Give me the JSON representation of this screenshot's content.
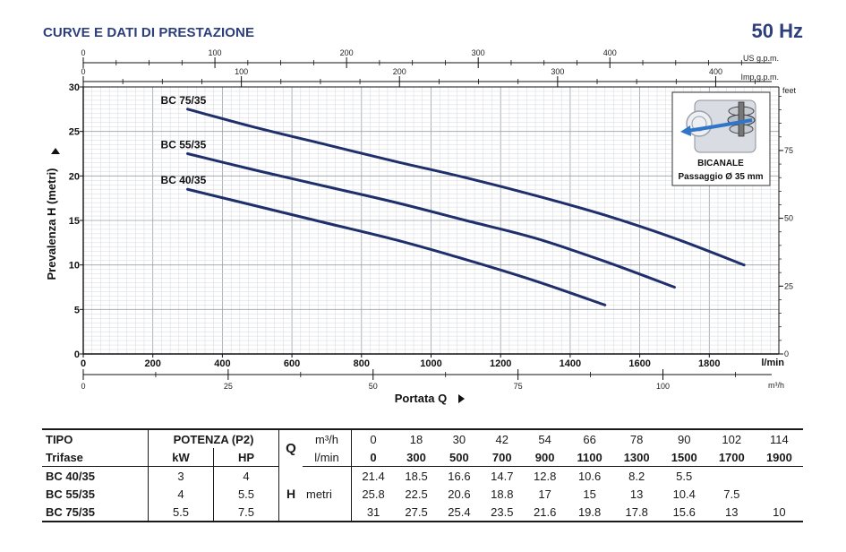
{
  "header": {
    "title": "CURVE E DATI DI PRESTAZIONE",
    "frequency": "50 Hz"
  },
  "chart_data": {
    "type": "line",
    "ylabel": "Prevalenza  H  (metri)",
    "xlabel": "Portata  Q",
    "x_unit": "l/min",
    "y_unit_right": "feet",
    "xlim": [
      0,
      2000
    ],
    "ylim": [
      0,
      30
    ],
    "x_ticks": [
      0,
      200,
      400,
      600,
      800,
      1000,
      1200,
      1400,
      1600,
      1800
    ],
    "y_ticks": [
      0,
      5,
      10,
      15,
      20,
      25,
      30
    ],
    "grid": true,
    "secondary_axes": {
      "us_gpm": {
        "unit": "US g.p.m.",
        "ticks": [
          0,
          100,
          200,
          300,
          400
        ]
      },
      "imp_gpm": {
        "unit": "Imp g.p.m.",
        "ticks": [
          0,
          100,
          200,
          300,
          400
        ]
      },
      "m3h": {
        "unit": "m³/h",
        "ticks": [
          0,
          25,
          50,
          75,
          100
        ]
      },
      "feet": {
        "unit": "feet",
        "ticks": [
          0,
          25,
          50,
          75
        ]
      }
    },
    "series": [
      {
        "name": "BC 75/35",
        "x": [
          300,
          500,
          700,
          900,
          1100,
          1300,
          1500,
          1700,
          1900
        ],
        "y": [
          27.5,
          25.4,
          23.5,
          21.6,
          19.8,
          17.8,
          15.6,
          13,
          10
        ]
      },
      {
        "name": "BC 55/35",
        "x": [
          300,
          500,
          700,
          900,
          1100,
          1300,
          1500,
          1700
        ],
        "y": [
          22.5,
          20.6,
          18.8,
          17,
          15,
          13,
          10.4,
          7.5
        ]
      },
      {
        "name": "BC 40/35",
        "x": [
          300,
          500,
          700,
          900,
          1100,
          1300,
          1500
        ],
        "y": [
          18.5,
          16.6,
          14.7,
          12.8,
          10.6,
          8.2,
          5.5
        ]
      }
    ],
    "series_color": "#1f2f6b"
  },
  "impeller_box": {
    "title": "BICANALE",
    "subtitle": "Passaggio Ø 35 mm",
    "icon": "impeller-icon"
  },
  "table": {
    "col_tipo": "TIPO",
    "col_trifase": "Trifase",
    "col_potenza": "POTENZA (P2)",
    "col_kw": "kW",
    "col_hp": "HP",
    "q_label": "Q",
    "q_unit_m3h": "m³/h",
    "q_unit_lmin": "l/min",
    "h_label": "H",
    "h_unit": "metri",
    "q_m3h": [
      "0",
      "18",
      "30",
      "42",
      "54",
      "66",
      "78",
      "90",
      "102",
      "114"
    ],
    "q_lmin": [
      "0",
      "300",
      "500",
      "700",
      "900",
      "1100",
      "1300",
      "1500",
      "1700",
      "1900"
    ],
    "rows": [
      {
        "model": "BC 40/35",
        "kw": "3",
        "hp": "4",
        "h": [
          "21.4",
          "18.5",
          "16.6",
          "14.7",
          "12.8",
          "10.6",
          "8.2",
          "5.5",
          "",
          ""
        ]
      },
      {
        "model": "BC 55/35",
        "kw": "4",
        "hp": "5.5",
        "h": [
          "25.8",
          "22.5",
          "20.6",
          "18.8",
          "17",
          "15",
          "13",
          "10.4",
          "7.5",
          ""
        ]
      },
      {
        "model": "BC 75/35",
        "kw": "5.5",
        "hp": "7.5",
        "h": [
          "31",
          "27.5",
          "25.4",
          "23.5",
          "21.6",
          "19.8",
          "17.8",
          "15.6",
          "13",
          "10"
        ]
      }
    ]
  }
}
